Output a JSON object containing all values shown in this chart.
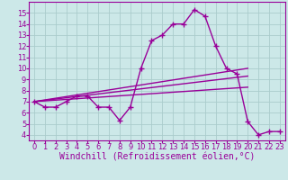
{
  "bg_color": "#cce8e8",
  "grid_color": "#aacccc",
  "line_color": "#990099",
  "xlabel": "Windchill (Refroidissement éolien,°C)",
  "xlabel_fontsize": 7,
  "tick_fontsize": 6,
  "xlim": [
    -0.5,
    23.5
  ],
  "ylim": [
    3.5,
    16.0
  ],
  "yticks": [
    4,
    5,
    6,
    7,
    8,
    9,
    10,
    11,
    12,
    13,
    14,
    15
  ],
  "xticks": [
    0,
    1,
    2,
    3,
    4,
    5,
    6,
    7,
    8,
    9,
    10,
    11,
    12,
    13,
    14,
    15,
    16,
    17,
    18,
    19,
    20,
    21,
    22,
    23
  ],
  "series1_x": [
    0,
    1,
    2,
    3,
    4,
    5,
    6,
    7,
    8,
    9,
    10,
    11,
    12,
    13,
    14,
    15,
    16,
    17,
    18,
    19,
    20,
    21,
    22,
    23
  ],
  "series1_y": [
    7.0,
    6.5,
    6.5,
    7.0,
    7.5,
    7.5,
    6.5,
    6.5,
    5.3,
    6.5,
    10.0,
    12.5,
    13.0,
    14.0,
    14.0,
    15.3,
    14.7,
    12.0,
    10.0,
    9.5,
    5.2,
    4.0,
    4.3,
    4.3
  ],
  "series2_x": [
    0,
    20
  ],
  "series2_y": [
    7.0,
    10.0
  ],
  "series3_x": [
    0,
    20
  ],
  "series3_y": [
    7.0,
    9.3
  ],
  "series4_x": [
    0,
    20
  ],
  "series4_y": [
    7.0,
    8.3
  ]
}
